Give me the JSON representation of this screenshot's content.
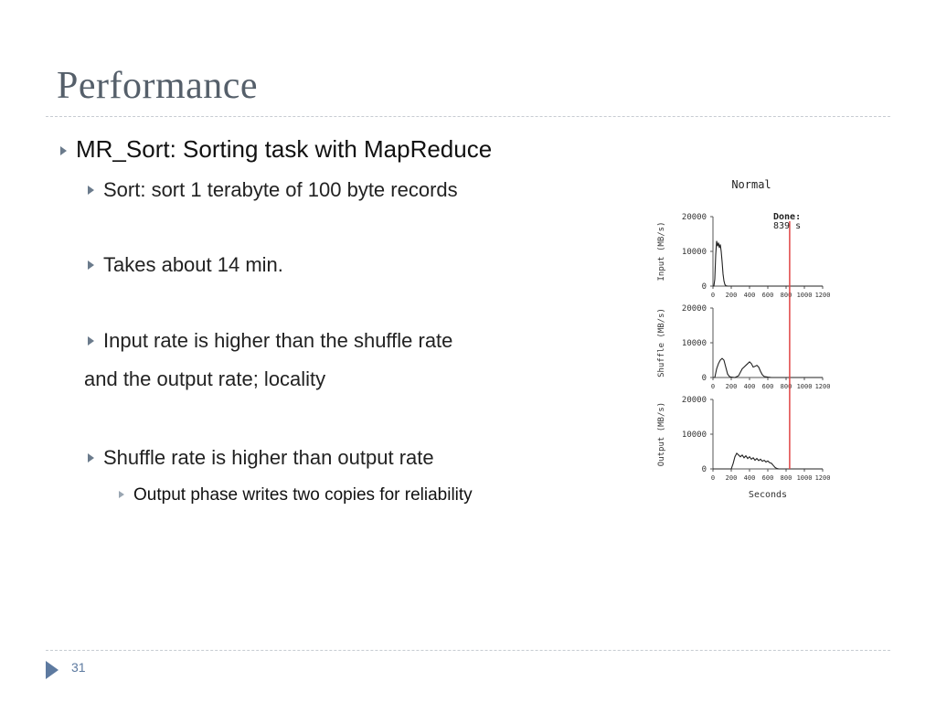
{
  "slide": {
    "title": "Performance",
    "bullets": {
      "b1": "MR_Sort: Sorting task with MapReduce",
      "b2": "Sort: sort 1 terabyte of 100 byte records",
      "b3": "Takes about 14 min.",
      "b4_line1": "Input rate is higher than the shuffle rate",
      "b4_line2": "and the output rate; locality",
      "b5": "Shuffle rate is higher than output rate",
      "b6": "Output phase writes two copies for reliability"
    },
    "page_number": "31"
  },
  "chart_data": {
    "type": "line",
    "title": "Normal",
    "xlabel": "Seconds",
    "xlim": [
      0,
      1200
    ],
    "ylim": [
      0,
      20000
    ],
    "x_ticks": [
      0,
      200,
      400,
      600,
      800,
      1000,
      1200
    ],
    "y_ticks": [
      0,
      10000,
      20000
    ],
    "annotation": {
      "label": "Done:",
      "value": "839 s",
      "x": 839
    },
    "marker_color": "#e04545",
    "series": [
      {
        "name": "Input (MB/s)",
        "points": [
          [
            0,
            0
          ],
          [
            10,
            0
          ],
          [
            20,
            2000
          ],
          [
            30,
            9000
          ],
          [
            40,
            13000
          ],
          [
            50,
            11500
          ],
          [
            60,
            12500
          ],
          [
            70,
            11000
          ],
          [
            80,
            12000
          ],
          [
            90,
            10000
          ],
          [
            100,
            7000
          ],
          [
            110,
            3500
          ],
          [
            120,
            1500
          ],
          [
            130,
            500
          ],
          [
            140,
            100
          ],
          [
            160,
            0
          ],
          [
            1200,
            0
          ]
        ]
      },
      {
        "name": "Shuffle (MB/s)",
        "points": [
          [
            0,
            0
          ],
          [
            20,
            0
          ],
          [
            40,
            2500
          ],
          [
            60,
            4000
          ],
          [
            80,
            5000
          ],
          [
            100,
            5500
          ],
          [
            120,
            5000
          ],
          [
            140,
            3000
          ],
          [
            160,
            1000
          ],
          [
            180,
            300
          ],
          [
            200,
            100
          ],
          [
            240,
            0
          ],
          [
            280,
            500
          ],
          [
            300,
            1500
          ],
          [
            320,
            2500
          ],
          [
            340,
            3000
          ],
          [
            360,
            3500
          ],
          [
            380,
            4000
          ],
          [
            400,
            4500
          ],
          [
            420,
            4000
          ],
          [
            440,
            3000
          ],
          [
            460,
            3200
          ],
          [
            480,
            3500
          ],
          [
            500,
            3000
          ],
          [
            520,
            1800
          ],
          [
            540,
            800
          ],
          [
            560,
            300
          ],
          [
            600,
            100
          ],
          [
            640,
            0
          ],
          [
            1200,
            0
          ]
        ]
      },
      {
        "name": "Output (MB/s)",
        "points": [
          [
            0,
            0
          ],
          [
            200,
            0
          ],
          [
            220,
            1500
          ],
          [
            240,
            3500
          ],
          [
            260,
            4500
          ],
          [
            280,
            4000
          ],
          [
            300,
            3500
          ],
          [
            320,
            4000
          ],
          [
            340,
            3200
          ],
          [
            360,
            3800
          ],
          [
            380,
            3000
          ],
          [
            400,
            3500
          ],
          [
            420,
            2800
          ],
          [
            440,
            3200
          ],
          [
            460,
            2500
          ],
          [
            480,
            3000
          ],
          [
            500,
            2400
          ],
          [
            520,
            2800
          ],
          [
            540,
            2200
          ],
          [
            560,
            2500
          ],
          [
            580,
            2000
          ],
          [
            600,
            2300
          ],
          [
            620,
            1800
          ],
          [
            640,
            1600
          ],
          [
            660,
            1000
          ],
          [
            680,
            400
          ],
          [
            700,
            100
          ],
          [
            720,
            0
          ],
          [
            840,
            0
          ],
          [
            1200,
            0
          ]
        ]
      }
    ]
  }
}
